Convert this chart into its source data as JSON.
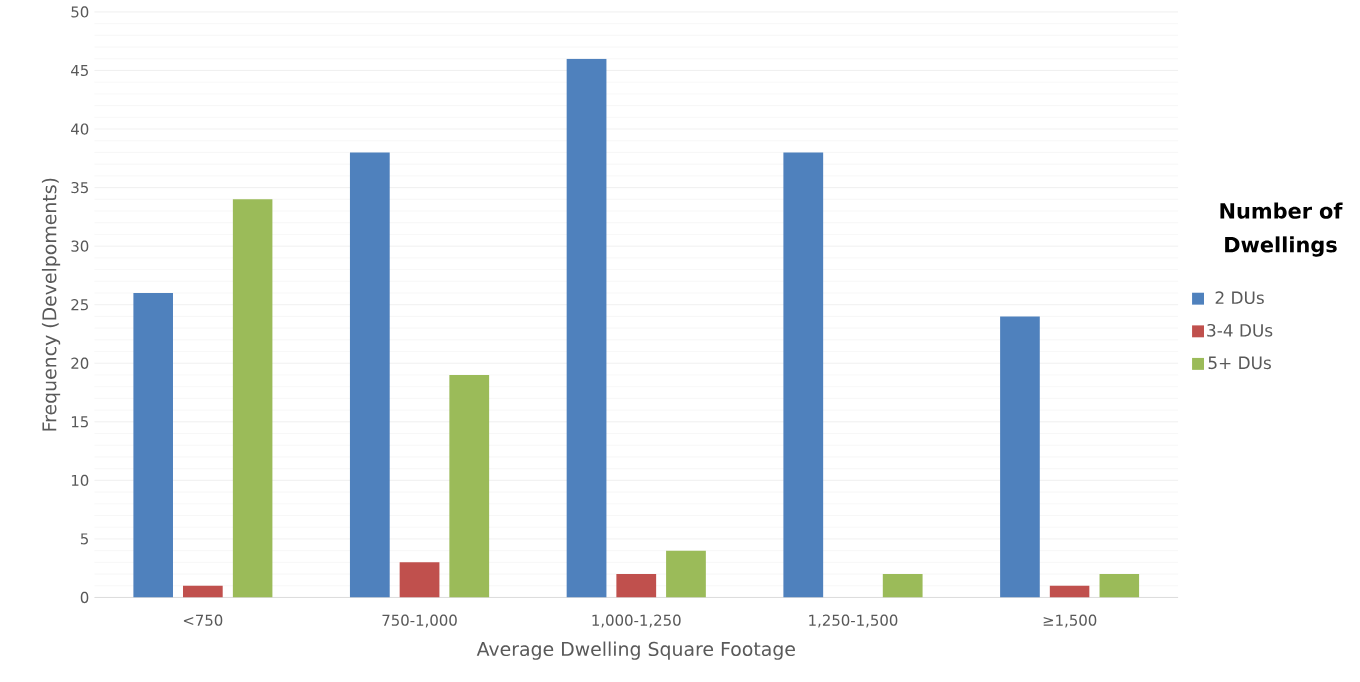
{
  "chart_data": {
    "type": "bar",
    "xlabel": "Average Dwelling Square Footage",
    "ylabel": "Frequency (Develpoments)",
    "legend_title": "Number of Dwellings",
    "categories": [
      "<750",
      "750-1,000",
      "1,000-1,250",
      "1,250-1,500",
      "≥1,500"
    ],
    "series": [
      {
        "name": "2 DUs",
        "color": "#4f81bd",
        "values": [
          26,
          38,
          46,
          38,
          24
        ]
      },
      {
        "name": "3-4 DUs",
        "color": "#c0504d",
        "values": [
          1,
          3,
          2,
          0,
          1
        ]
      },
      {
        "name": "5+ DUs",
        "color": "#9bbb59",
        "values": [
          34,
          19,
          4,
          2,
          2
        ]
      }
    ],
    "ylim": [
      0,
      50
    ],
    "yticks": [
      0,
      5,
      10,
      15,
      20,
      25,
      30,
      35,
      40,
      45,
      50
    ],
    "grid": "y",
    "legend": "right"
  }
}
